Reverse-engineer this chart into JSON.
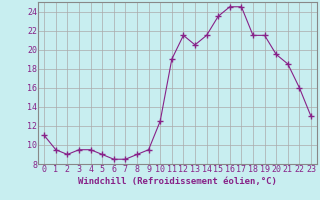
{
  "x": [
    0,
    1,
    2,
    3,
    4,
    5,
    6,
    7,
    8,
    9,
    10,
    11,
    12,
    13,
    14,
    15,
    16,
    17,
    18,
    19,
    20,
    21,
    22,
    23
  ],
  "y": [
    11,
    9.5,
    9,
    9.5,
    9.5,
    9,
    8.5,
    8.5,
    9,
    9.5,
    12.5,
    19,
    21.5,
    20.5,
    21.5,
    23.5,
    24.5,
    24.5,
    21.5,
    21.5,
    19.5,
    18.5,
    16,
    13
  ],
  "line_color": "#882288",
  "marker": "+",
  "marker_size": 4,
  "bg_color": "#c8eef0",
  "grid_color": "#aaaaaa",
  "xlabel": "Windchill (Refroidissement éolien,°C)",
  "xlabel_color": "#882288",
  "xlabel_fontsize": 6.5,
  "tick_color": "#882288",
  "tick_fontsize": 6,
  "ylim": [
    8,
    25
  ],
  "yticks": [
    8,
    10,
    12,
    14,
    16,
    18,
    20,
    22,
    24
  ],
  "xticks": [
    0,
    1,
    2,
    3,
    4,
    5,
    6,
    7,
    8,
    9,
    10,
    11,
    12,
    13,
    14,
    15,
    16,
    17,
    18,
    19,
    20,
    21,
    22,
    23
  ]
}
